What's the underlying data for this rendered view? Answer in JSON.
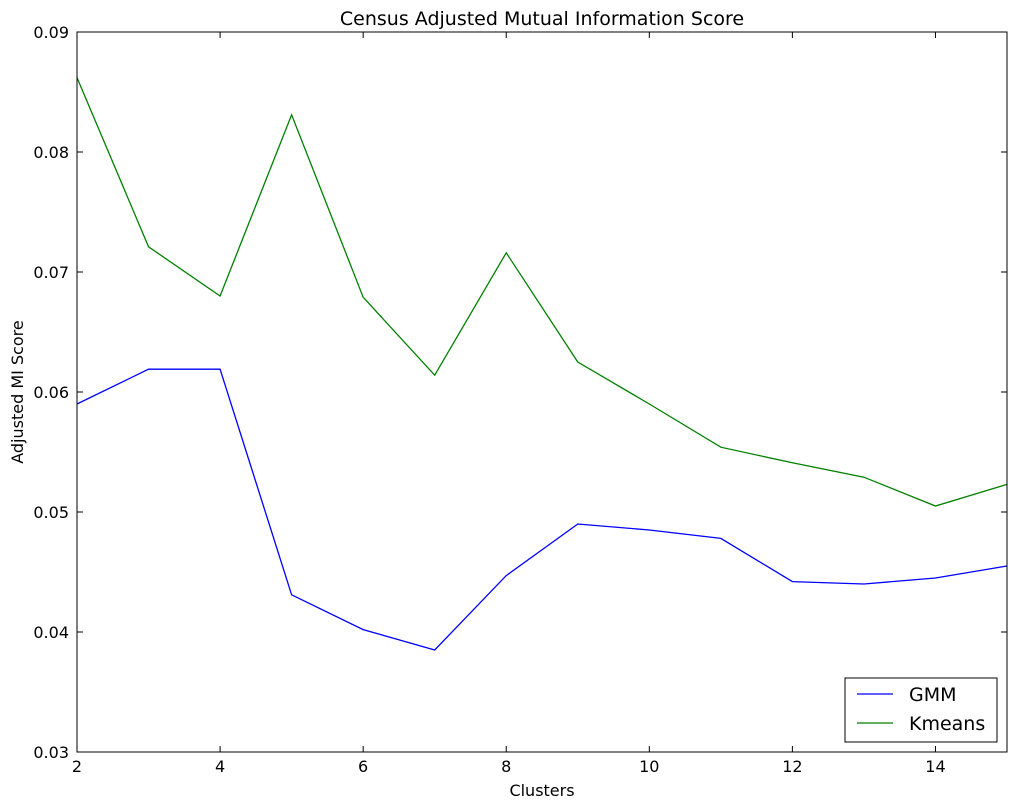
{
  "chart_data": {
    "type": "line",
    "title": "Census  Adjusted Mutual Information Score",
    "xlabel": "Clusters",
    "ylabel": "Adjusted MI Score",
    "xlim": [
      2,
      15
    ],
    "ylim": [
      0.03,
      0.09
    ],
    "xticks": [
      2,
      4,
      6,
      8,
      10,
      12,
      14
    ],
    "yticks": [
      0.03,
      0.04,
      0.05,
      0.06,
      0.07,
      0.08,
      0.09
    ],
    "ytick_labels": [
      "0.03",
      "0.04",
      "0.05",
      "0.06",
      "0.07",
      "0.08",
      "0.09"
    ],
    "grid": false,
    "legend_position": "bottom-right",
    "x": [
      2,
      3,
      4,
      5,
      6,
      7,
      8,
      9,
      10,
      11,
      12,
      13,
      14,
      15
    ],
    "series": [
      {
        "name": "GMM",
        "color": "#0000ff",
        "values": [
          0.059,
          0.0619,
          0.0619,
          0.0431,
          0.0402,
          0.0385,
          0.0447,
          0.049,
          0.0485,
          0.0478,
          0.0442,
          0.044,
          0.0445,
          0.0455
        ]
      },
      {
        "name": "Kmeans",
        "color": "#008000",
        "values": [
          0.0862,
          0.0721,
          0.068,
          0.0831,
          0.0679,
          0.0614,
          0.0716,
          0.0625,
          0.059,
          0.0554,
          0.0541,
          0.0529,
          0.0505,
          0.0523
        ]
      }
    ]
  }
}
